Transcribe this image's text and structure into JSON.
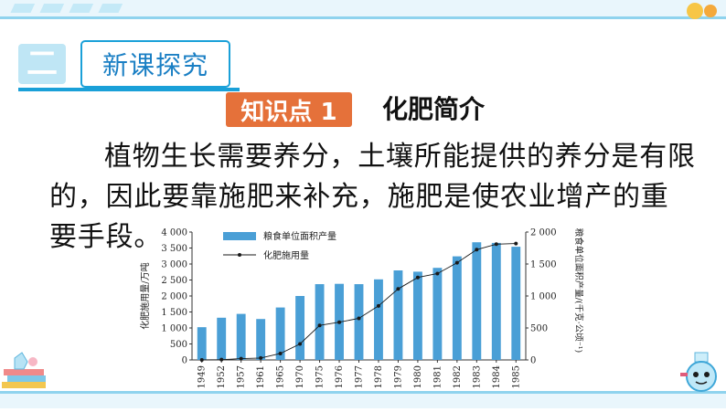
{
  "section": {
    "number": "二",
    "title": "新课探究"
  },
  "knowledge_point": {
    "badge": "知识点 1",
    "title": "化肥简介"
  },
  "paragraph": "植物生长需要养分，土壤所能提供的养分是有限的，因此要靠施肥来补充，施肥是使农业增产的重要手段。",
  "colors": {
    "accent": "#1aa0d8",
    "badge": "#e5713a",
    "bar": "#4a9fd6",
    "line": "#1a1a1a"
  },
  "chart_data": {
    "type": "bar",
    "title": "",
    "categories": [
      "1949",
      "1952",
      "1957",
      "1961",
      "1965",
      "1970",
      "1975",
      "1976",
      "1977",
      "1978",
      "1979",
      "1980",
      "1981",
      "1982",
      "1983",
      "1984",
      "1985"
    ],
    "ylabel": "化肥施用量/万吨",
    "y2label": "粮食单位面积产量/(千克·公顷⁻¹)",
    "ylim": [
      0,
      4000
    ],
    "y2lim": [
      0,
      2000
    ],
    "yticks": [
      "0",
      "500",
      "1 000",
      "1 500",
      "2 000",
      "2 500",
      "3 000",
      "3 500",
      "4 000"
    ],
    "y2ticks": [
      "0",
      "500",
      "1 000",
      "1 500",
      "2 000"
    ],
    "legend_position": "top-left",
    "series": [
      {
        "name": "粮食单位面积产量",
        "axis": "right",
        "render": "bar",
        "values": [
          512,
          660,
          720,
          640,
          820,
          1000,
          1185,
          1190,
          1185,
          1260,
          1400,
          1380,
          1440,
          1620,
          1840,
          1830,
          1770
        ]
      },
      {
        "name": "化肥施用量",
        "axis": "left",
        "render": "line",
        "values": [
          0,
          10,
          40,
          60,
          200,
          500,
          1080,
          1180,
          1300,
          1690,
          2220,
          2580,
          2700,
          3040,
          3450,
          3620,
          3640
        ]
      }
    ]
  }
}
